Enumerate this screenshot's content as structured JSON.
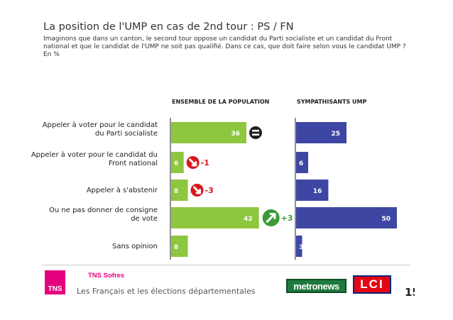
{
  "header": {
    "title": "La position de l'UMP en cas de 2nd tour : PS / FN",
    "question": "Imaginons que dans un canton, le second tour oppose un candidat du Parti socialiste et un candidat du Front national et que le candidat de l'UMP ne soit pas qualifié. Dans ce cas, que doit faire selon vous le candidat UMP ?",
    "unit": "En %"
  },
  "chart_data": {
    "type": "bar",
    "orientation": "horizontal",
    "categories": [
      [
        "Appeler à voter pour le candidat",
        "du Parti socialiste"
      ],
      [
        "Appeler à voter pour le candidat du",
        "Front national"
      ],
      [
        "Appeler à s'abstenir"
      ],
      [
        "Ou ne pas donner de consigne",
        "de vote"
      ],
      [
        "Sans opinion"
      ]
    ],
    "series": [
      {
        "name": "ENSEMBLE DE LA POPULATION",
        "color": "#8dc63f",
        "values": [
          36,
          6,
          8,
          42,
          8
        ],
        "evolution": [
          {
            "dir": "equal",
            "label": ""
          },
          {
            "dir": "down",
            "label": "-1"
          },
          {
            "dir": "down",
            "label": "-3"
          },
          {
            "dir": "up",
            "label": "+3"
          },
          null
        ]
      },
      {
        "name": "SYMPATHISANTS UMP",
        "color": "#3d47a3",
        "values": [
          25,
          6,
          16,
          50,
          3
        ]
      }
    ],
    "xlim": [
      0,
      50
    ],
    "grid": false,
    "legend": "column headers"
  },
  "colors": {
    "down": "#d7191c",
    "up": "#3a9a3a",
    "equal": "#222222"
  },
  "footer": {
    "brand_logo": "TNS",
    "brand": "TNS Sofres",
    "study": "Les Français et les élections départementales",
    "partner1": "metronews",
    "partner2": "LCI",
    "page": "15"
  }
}
